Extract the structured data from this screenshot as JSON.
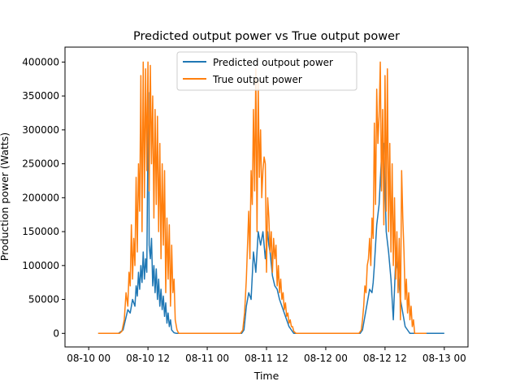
{
  "chart_data": {
    "type": "line",
    "title": "Predicted output power vs True output power",
    "xlabel": "Time",
    "ylabel": "Production power (Watts)",
    "xlim": [
      -0.2,
      3.2
    ],
    "ylim": [
      -20000,
      422000
    ],
    "x_unit": "days",
    "x_ticks": [
      {
        "value": 0,
        "label": "08-10 00"
      },
      {
        "value": 0.5,
        "label": "08-10 12"
      },
      {
        "value": 1,
        "label": "08-11 00"
      },
      {
        "value": 1.5,
        "label": "08-11 12"
      },
      {
        "value": 2,
        "label": "08-12 00"
      },
      {
        "value": 2.5,
        "label": "08-12 12"
      },
      {
        "value": 3,
        "label": "08-13 00"
      }
    ],
    "y_ticks": [
      {
        "value": 0,
        "label": "0"
      },
      {
        "value": 50000,
        "label": "50000"
      },
      {
        "value": 100000,
        "label": "100000"
      },
      {
        "value": 150000,
        "label": "150000"
      },
      {
        "value": 200000,
        "label": "200000"
      },
      {
        "value": 250000,
        "label": "250000"
      },
      {
        "value": 300000,
        "label": "300000"
      },
      {
        "value": 350000,
        "label": "350000"
      },
      {
        "value": 400000,
        "label": "400000"
      }
    ],
    "legend": {
      "position": "upper-center"
    },
    "grid": false,
    "series": [
      {
        "name": "Predicted outpout power",
        "color": "#1f77b4",
        "x": [
          0.08,
          0.25,
          0.29,
          0.31,
          0.33,
          0.35,
          0.37,
          0.39,
          0.4,
          0.41,
          0.42,
          0.43,
          0.44,
          0.45,
          0.46,
          0.47,
          0.48,
          0.49,
          0.5,
          0.505,
          0.51,
          0.52,
          0.53,
          0.54,
          0.55,
          0.56,
          0.57,
          0.58,
          0.59,
          0.6,
          0.61,
          0.62,
          0.63,
          0.64,
          0.65,
          0.66,
          0.67,
          0.68,
          0.69,
          0.7,
          0.72,
          0.74,
          1.29,
          1.31,
          1.33,
          1.35,
          1.37,
          1.39,
          1.41,
          1.43,
          1.45,
          1.47,
          1.49,
          1.51,
          1.52,
          1.53,
          1.55,
          1.57,
          1.59,
          1.61,
          1.63,
          1.65,
          1.67,
          1.69,
          1.71,
          1.73,
          2.29,
          2.31,
          2.33,
          2.35,
          2.37,
          2.39,
          2.4,
          2.41,
          2.43,
          2.45,
          2.47,
          2.49,
          2.51,
          2.53,
          2.55,
          2.57,
          2.59,
          2.61,
          2.63,
          2.65,
          2.67,
          2.69,
          2.71,
          2.73,
          3.0
        ],
        "y": [
          0,
          0,
          5000,
          20000,
          35000,
          30000,
          50000,
          40000,
          70000,
          55000,
          90000,
          65000,
          100000,
          75000,
          120000,
          80000,
          110000,
          90000,
          300000,
          355000,
          130000,
          110000,
          140000,
          70000,
          100000,
          60000,
          95000,
          50000,
          80000,
          40000,
          65000,
          35000,
          55000,
          25000,
          45000,
          15000,
          30000,
          10000,
          20000,
          5000,
          1000,
          0,
          0,
          5000,
          40000,
          60000,
          50000,
          120000,
          90000,
          150000,
          130000,
          150000,
          110000,
          150000,
          130000,
          120000,
          85000,
          70000,
          65000,
          50000,
          40000,
          30000,
          20000,
          10000,
          5000,
          0,
          0,
          5000,
          25000,
          45000,
          65000,
          60000,
          75000,
          100000,
          160000,
          190000,
          260000,
          280000,
          150000,
          120000,
          80000,
          20000,
          110000,
          90000,
          50000,
          30000,
          10000,
          5000,
          0,
          0,
          0
        ]
      },
      {
        "name": "True output power",
        "color": "#ff7f0e",
        "x": [
          0.08,
          0.26,
          0.28,
          0.3,
          0.315,
          0.33,
          0.34,
          0.35,
          0.36,
          0.37,
          0.38,
          0.39,
          0.4,
          0.41,
          0.42,
          0.43,
          0.44,
          0.45,
          0.46,
          0.47,
          0.48,
          0.49,
          0.5,
          0.51,
          0.52,
          0.53,
          0.54,
          0.55,
          0.56,
          0.57,
          0.58,
          0.59,
          0.6,
          0.61,
          0.62,
          0.63,
          0.64,
          0.65,
          0.66,
          0.67,
          0.68,
          0.69,
          0.7,
          0.71,
          0.72,
          0.73,
          0.745,
          0.76,
          0.78,
          1.28,
          1.3,
          1.315,
          1.33,
          1.34,
          1.35,
          1.36,
          1.37,
          1.38,
          1.39,
          1.4,
          1.41,
          1.42,
          1.43,
          1.44,
          1.45,
          1.46,
          1.47,
          1.48,
          1.49,
          1.5,
          1.51,
          1.52,
          1.53,
          1.54,
          1.55,
          1.56,
          1.57,
          1.58,
          1.59,
          1.6,
          1.61,
          1.62,
          1.63,
          1.64,
          1.65,
          1.66,
          1.67,
          1.68,
          1.69,
          1.7,
          1.71,
          1.72,
          1.73,
          1.75,
          2.28,
          2.3,
          2.31,
          2.32,
          2.33,
          2.34,
          2.35,
          2.36,
          2.37,
          2.38,
          2.39,
          2.4,
          2.41,
          2.42,
          2.43,
          2.44,
          2.45,
          2.46,
          2.47,
          2.48,
          2.49,
          2.5,
          2.51,
          2.52,
          2.53,
          2.54,
          2.55,
          2.56,
          2.57,
          2.58,
          2.59,
          2.6,
          2.61,
          2.62,
          2.63,
          2.64,
          2.65,
          2.66,
          2.67,
          2.68,
          2.69,
          2.7,
          2.71,
          2.72,
          2.73,
          2.74,
          2.75,
          2.85
        ],
        "y": [
          0,
          0,
          3000,
          20000,
          60000,
          40000,
          90000,
          70000,
          160000,
          80000,
          140000,
          100000,
          230000,
          120000,
          250000,
          180000,
          380000,
          150000,
          400000,
          200000,
          390000,
          240000,
          400000,
          210000,
          395000,
          250000,
          350000,
          170000,
          330000,
          190000,
          320000,
          150000,
          280000,
          110000,
          250000,
          130000,
          240000,
          60000,
          170000,
          80000,
          160000,
          40000,
          130000,
          60000,
          80000,
          20000,
          5000,
          0,
          0,
          0,
          5000,
          30000,
          80000,
          130000,
          180000,
          110000,
          240000,
          190000,
          330000,
          210000,
          390000,
          150000,
          370000,
          230000,
          300000,
          200000,
          240000,
          260000,
          250000,
          90000,
          200000,
          170000,
          120000,
          150000,
          90000,
          140000,
          110000,
          130000,
          70000,
          100000,
          60000,
          80000,
          50000,
          60000,
          35000,
          45000,
          25000,
          30000,
          15000,
          20000,
          10000,
          10000,
          3000,
          0,
          0,
          5000,
          20000,
          40000,
          70000,
          60000,
          100000,
          110000,
          140000,
          100000,
          170000,
          140000,
          310000,
          190000,
          360000,
          280000,
          320000,
          400000,
          210000,
          330000,
          160000,
          380000,
          180000,
          390000,
          150000,
          280000,
          120000,
          250000,
          100000,
          200000,
          80000,
          150000,
          60000,
          140000,
          20000,
          240000,
          170000,
          120000,
          50000,
          80000,
          30000,
          60000,
          20000,
          40000,
          10000,
          20000,
          0,
          0
        ]
      }
    ]
  }
}
